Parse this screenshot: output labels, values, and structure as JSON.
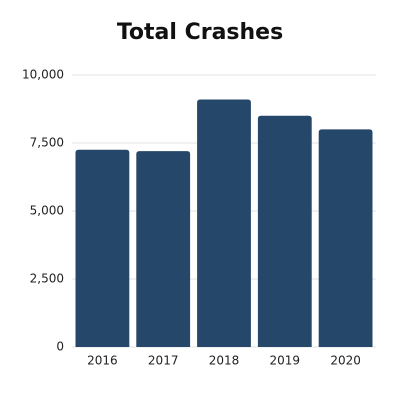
{
  "chart_data": {
    "type": "bar",
    "title": "Total Crashes",
    "categories": [
      "2016",
      "2017",
      "2018",
      "2019",
      "2020"
    ],
    "values": [
      7250,
      7200,
      9100,
      8500,
      8000
    ],
    "color": "#24476a",
    "ylim": [
      0,
      10000
    ],
    "yticks": [
      0,
      {
        "value": 2500,
        "label": "2,500"
      },
      {
        "value": 5000,
        "label": "5,000"
      },
      {
        "value": 7500,
        "label": "7,500"
      },
      {
        "value": 10000,
        "label": "10,000"
      }
    ],
    "grid": true
  }
}
